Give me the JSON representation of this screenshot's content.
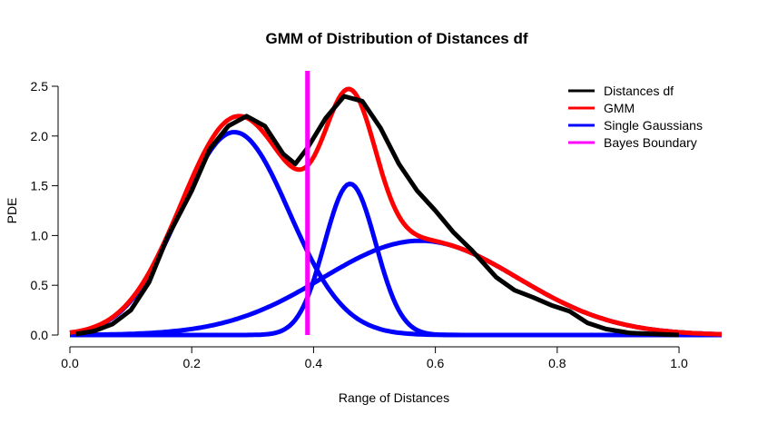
{
  "chart_data": {
    "type": "line",
    "title": "GMM of Distribution of Distances df",
    "xlabel": "Range of Distances",
    "ylabel": "PDE",
    "xlim": [
      0.0,
      1.07
    ],
    "ylim": [
      0.0,
      2.65
    ],
    "xticks": [
      "0.0",
      "0.2",
      "0.4",
      "0.6",
      "0.8",
      "1.0"
    ],
    "yticks": [
      "0.0",
      "0.5",
      "1.0",
      "1.5",
      "2.0",
      "2.5"
    ],
    "legend_position": "top-right",
    "series": [
      {
        "name": "Distances df",
        "color": "#000000",
        "points": [
          [
            0.01,
            0.01
          ],
          [
            0.04,
            0.04
          ],
          [
            0.07,
            0.11
          ],
          [
            0.1,
            0.25
          ],
          [
            0.13,
            0.53
          ],
          [
            0.16,
            0.98
          ],
          [
            0.2,
            1.45
          ],
          [
            0.23,
            1.87
          ],
          [
            0.26,
            2.1
          ],
          [
            0.29,
            2.2
          ],
          [
            0.32,
            2.1
          ],
          [
            0.35,
            1.82
          ],
          [
            0.37,
            1.72
          ],
          [
            0.39,
            1.88
          ],
          [
            0.42,
            2.18
          ],
          [
            0.45,
            2.4
          ],
          [
            0.48,
            2.35
          ],
          [
            0.51,
            2.08
          ],
          [
            0.54,
            1.72
          ],
          [
            0.57,
            1.45
          ],
          [
            0.6,
            1.25
          ],
          [
            0.63,
            1.03
          ],
          [
            0.66,
            0.85
          ],
          [
            0.7,
            0.58
          ],
          [
            0.73,
            0.45
          ],
          [
            0.76,
            0.38
          ],
          [
            0.79,
            0.3
          ],
          [
            0.82,
            0.24
          ],
          [
            0.85,
            0.12
          ],
          [
            0.88,
            0.06
          ],
          [
            0.92,
            0.02
          ],
          [
            0.96,
            0.01
          ],
          [
            1.0,
            0.0
          ]
        ]
      },
      {
        "name": "GMM",
        "color": "#ff0000",
        "mixture": [
          {
            "weight": 0.46,
            "mean": 0.27,
            "sd": 0.09
          },
          {
            "weight": 0.16,
            "mean": 0.46,
            "sd": 0.042
          },
          {
            "weight": 0.38,
            "mean": 0.575,
            "sd": 0.16
          }
        ]
      },
      {
        "name": "Single Gaussians",
        "color": "#0000ff",
        "components": [
          {
            "weight": 0.46,
            "mean": 0.27,
            "sd": 0.09
          },
          {
            "weight": 0.16,
            "mean": 0.46,
            "sd": 0.042
          },
          {
            "weight": 0.38,
            "mean": 0.575,
            "sd": 0.16
          }
        ]
      },
      {
        "name": "Bayes Boundary",
        "color": "#ff00ff",
        "x": 0.39
      }
    ]
  }
}
